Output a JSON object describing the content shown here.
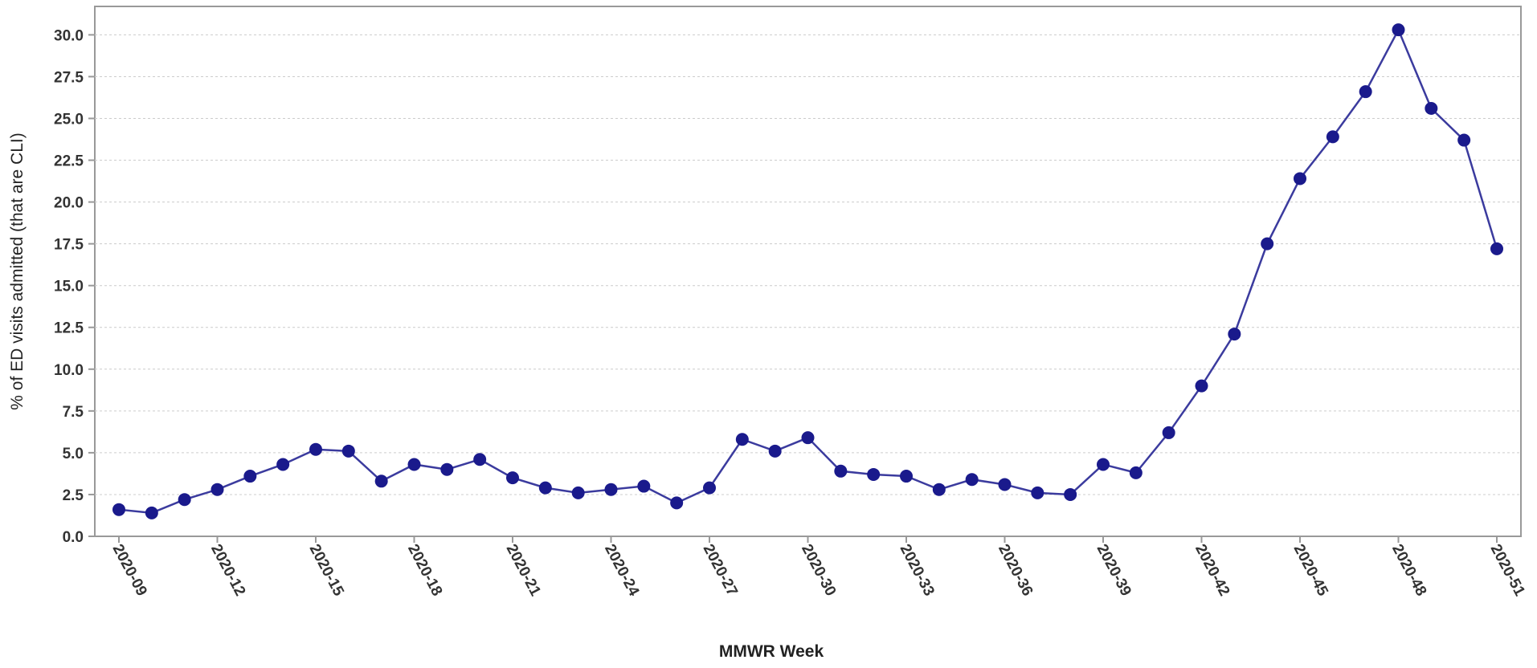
{
  "chart_data": {
    "type": "line",
    "x_label": "MMWR Week",
    "y_label": "% of ED visits admitted (that are CLI)",
    "categories": [
      "2020-09",
      null,
      null,
      "2020-12",
      null,
      null,
      "2020-15",
      null,
      null,
      "2020-18",
      null,
      null,
      "2020-21",
      null,
      null,
      "2020-24",
      null,
      null,
      "2020-27",
      null,
      null,
      "2020-30",
      null,
      null,
      "2020-33",
      null,
      null,
      "2020-36",
      null,
      null,
      "2020-39",
      null,
      null,
      "2020-42",
      null,
      null,
      "2020-45",
      null,
      null,
      "2020-48",
      null,
      null,
      "2020-51"
    ],
    "series": [
      {
        "color": "#1a1a8c",
        "values": [
          1.6,
          1.4,
          2.2,
          2.8,
          3.6,
          4.3,
          5.2,
          5.1,
          3.3,
          4.3,
          4.0,
          4.6,
          3.5,
          2.9,
          2.6,
          2.8,
          3.0,
          2.0,
          2.9,
          5.8,
          5.1,
          5.9,
          3.9,
          3.7,
          3.6,
          2.8,
          3.4,
          3.1,
          2.6,
          2.5,
          4.3,
          3.8,
          6.2,
          9.0,
          12.1,
          17.5,
          21.4,
          23.9,
          26.6,
          30.3,
          25.6,
          23.7,
          17.2
        ]
      }
    ],
    "ylim": [
      0,
      31.7
    ],
    "yticks": [
      {
        "value": 0,
        "label": "0.0"
      },
      2.5,
      {
        "value": 5,
        "label": "5.0"
      },
      7.5,
      {
        "value": 10,
        "label": "10.0"
      },
      12.5,
      {
        "value": 15,
        "label": "15.0"
      },
      17.5,
      {
        "value": 20,
        "label": "20.0"
      },
      22.5,
      {
        "value": 25,
        "label": "25.0"
      },
      27.5,
      {
        "value": 30,
        "label": "30.0"
      }
    ],
    "grid": true
  }
}
